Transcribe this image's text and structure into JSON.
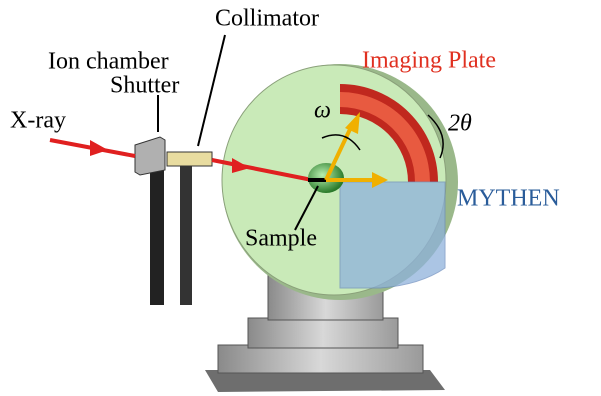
{
  "labels": {
    "collimator": "Collimator",
    "ion_chamber": "Ion chamber",
    "shutter": "Shutter",
    "xray": "X-ray",
    "imaging_plate": "Imaging Plate",
    "omega": "ω",
    "two_theta": "2θ",
    "mythen": "MYTHEN",
    "sample": "Sample"
  }
}
